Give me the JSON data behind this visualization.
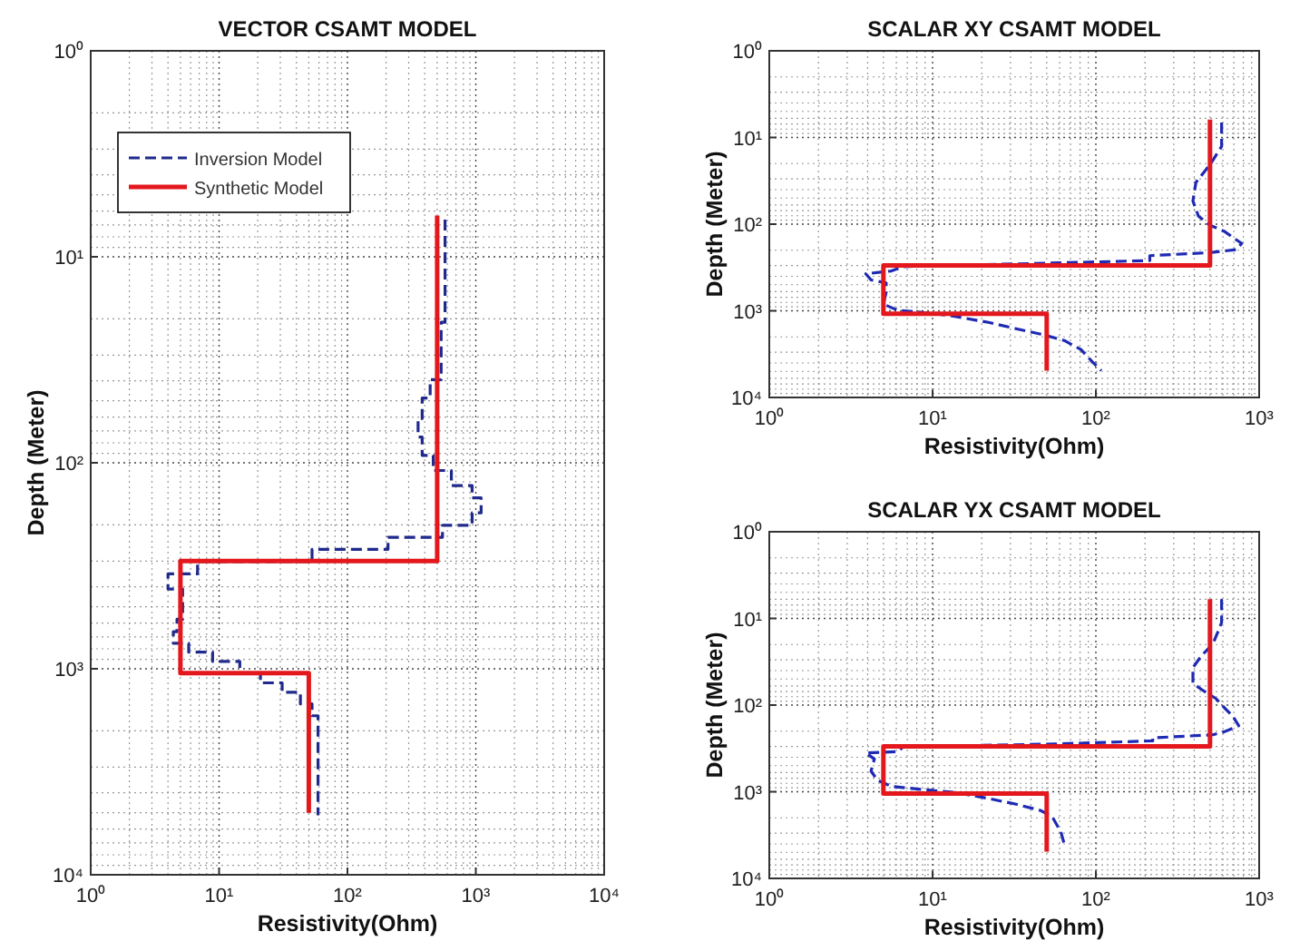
{
  "chart_data": [
    {
      "type": "line",
      "title": "VECTOR CSAMT MODEL",
      "xlabel": "Resistivity(Ohm)",
      "ylabel": "Depth (Meter)",
      "log": "xy",
      "grid": true,
      "legend": "top left",
      "marker": "none",
      "xlim": [
        1,
        10000
      ],
      "xticks": [
        {
          "value": 1,
          "label": "10⁰"
        },
        {
          "value": 10,
          "label": "10¹"
        },
        {
          "value": 100,
          "label": "10²"
        },
        {
          "value": 1000,
          "label": "10³"
        },
        {
          "value": 10000,
          "label": "10⁴"
        }
      ],
      "ylim": [
        10000,
        1
      ],
      "yticks": [
        {
          "value": 1,
          "label": "10⁰"
        },
        {
          "value": 10,
          "label": "10¹"
        },
        {
          "value": 100,
          "label": "10²"
        },
        {
          "value": 1000,
          "label": "10³"
        },
        {
          "value": 10000,
          "label": "10⁴"
        }
      ],
      "series": [
        {
          "name": "Inversion Model",
          "color": "#1f2a8c",
          "line_style": "dashed",
          "x": [
            576,
            576,
            537,
            537,
            441,
            441,
            382,
            382,
            355,
            355,
            382,
            382,
            466,
            466,
            645,
            645,
            936,
            936,
            1100,
            1100,
            936,
            936,
            550,
            550,
            207,
            207,
            53,
            53,
            6.8,
            6.8,
            4,
            4,
            5.2,
            5.2,
            4.7,
            4.7,
            4.4,
            4.4,
            5.8,
            5.8,
            8.9,
            8.9,
            14.5,
            14.5,
            21,
            21,
            31,
            31,
            43,
            43,
            53,
            53,
            59,
            59
          ],
          "values": [
            6.6,
            20.8,
            20.8,
            39.5,
            39.5,
            48.5,
            48.5,
            61,
            61,
            75,
            75,
            92,
            92,
            109,
            109,
            129,
            129,
            148,
            148,
            175,
            175,
            201,
            201,
            230,
            230,
            263,
            263,
            302,
            302,
            346,
            346,
            410,
            410,
            575,
            575,
            660,
            660,
            752,
            752,
            830,
            830,
            920,
            920,
            1050,
            1050,
            1170,
            1170,
            1300,
            1300,
            1480,
            1480,
            1690,
            1690,
            5150
          ]
        },
        {
          "name": "Synthetic Model",
          "color": "#e3171c",
          "line_style": "solid",
          "x": [
            500,
            500,
            5,
            5,
            50,
            50
          ],
          "values": [
            6.3,
            300,
            300,
            1050,
            1050,
            5000
          ]
        }
      ]
    },
    {
      "type": "line",
      "title": "SCALAR XY CSAMT MODEL",
      "xlabel": "Resistivity(Ohm)",
      "ylabel": "Depth (Meter)",
      "log": "xy",
      "grid": true,
      "legend": false,
      "marker": "none",
      "xlim": [
        1,
        1000
      ],
      "xticks": [
        {
          "value": 1,
          "label": "10⁰"
        },
        {
          "value": 10,
          "label": "10¹"
        },
        {
          "value": 100,
          "label": "10²"
        },
        {
          "value": 1000,
          "label": "10³"
        }
      ],
      "ylim": [
        10000,
        1
      ],
      "yticks": [
        {
          "value": 1,
          "label": "10⁰"
        },
        {
          "value": 10,
          "label": "10¹"
        },
        {
          "value": 100,
          "label": "10²"
        },
        {
          "value": 1000,
          "label": "10³"
        },
        {
          "value": 10000,
          "label": "10⁴"
        }
      ],
      "series": [
        {
          "color": "#1f2ab4",
          "line_style": "dashed",
          "x": [
            589,
            589,
            500,
            410,
            393,
            425,
            500,
            612,
            692,
            782,
            721,
            500,
            214,
            214,
            59,
            6.6,
            5.6,
            3.9,
            4.2,
            5.2,
            5.2,
            5.0,
            6.1,
            9.9,
            13.7,
            22,
            32,
            46,
            64,
            81,
            95,
            108
          ],
          "values": [
            6.7,
            12.7,
            20.6,
            33,
            54,
            81,
            103,
            121,
            143,
            167,
            197,
            213,
            231,
            263,
            280,
            309,
            347,
            374,
            440,
            477,
            607,
            838,
            984,
            1070,
            1160,
            1360,
            1600,
            1860,
            2200,
            2800,
            3870,
            4900
          ]
        },
        {
          "color": "#e3171c",
          "line_style": "solid",
          "x": [
            500,
            500,
            5,
            5,
            50,
            50
          ],
          "values": [
            6.2,
            300,
            300,
            1080,
            1080,
            4900
          ]
        }
      ]
    },
    {
      "type": "line",
      "title": "SCALAR YX CSAMT MODEL",
      "xlabel": "Resistivity(Ohm)",
      "ylabel": "Depth (Meter)",
      "log": "xy",
      "grid": true,
      "legend": false,
      "marker": "none",
      "xlim": [
        1,
        1000
      ],
      "xticks": [
        {
          "value": 1,
          "label": "10⁰"
        },
        {
          "value": 10,
          "label": "10¹"
        },
        {
          "value": 100,
          "label": "10²"
        },
        {
          "value": 1000,
          "label": "10³"
        }
      ],
      "ylim": [
        10000,
        1
      ],
      "yticks": [
        {
          "value": 1,
          "label": "10⁰"
        },
        {
          "value": 10,
          "label": "10¹"
        },
        {
          "value": 100,
          "label": "10²"
        },
        {
          "value": 1000,
          "label": "10³"
        },
        {
          "value": 10000,
          "label": "10⁴"
        }
      ],
      "series": [
        {
          "color": "#1f2ab4",
          "line_style": "dashed",
          "x": [
            589,
            589,
            521,
            443,
            393,
            393,
            443,
            543,
            612,
            692,
            750,
            612,
            521,
            223,
            223,
            56,
            6.6,
            6.1,
            3.9,
            4.4,
            4.2,
            4.6,
            5.6,
            8.4,
            13.7,
            22,
            33,
            46,
            54,
            61,
            64
          ],
          "values": [
            6,
            11.2,
            19.7,
            27,
            37,
            56,
            66,
            84,
            107,
            136,
            173,
            203,
            220,
            239,
            259,
            281,
            304,
            345,
            357,
            419,
            578,
            736,
            865,
            938,
            1016,
            1194,
            1403,
            1648,
            1937,
            2897,
            3990
          ]
        },
        {
          "color": "#e3171c",
          "line_style": "solid",
          "x": [
            500,
            500,
            5,
            5,
            50,
            50
          ],
          "values": [
            6,
            300,
            300,
            1050,
            1050,
            4900
          ]
        }
      ]
    }
  ]
}
